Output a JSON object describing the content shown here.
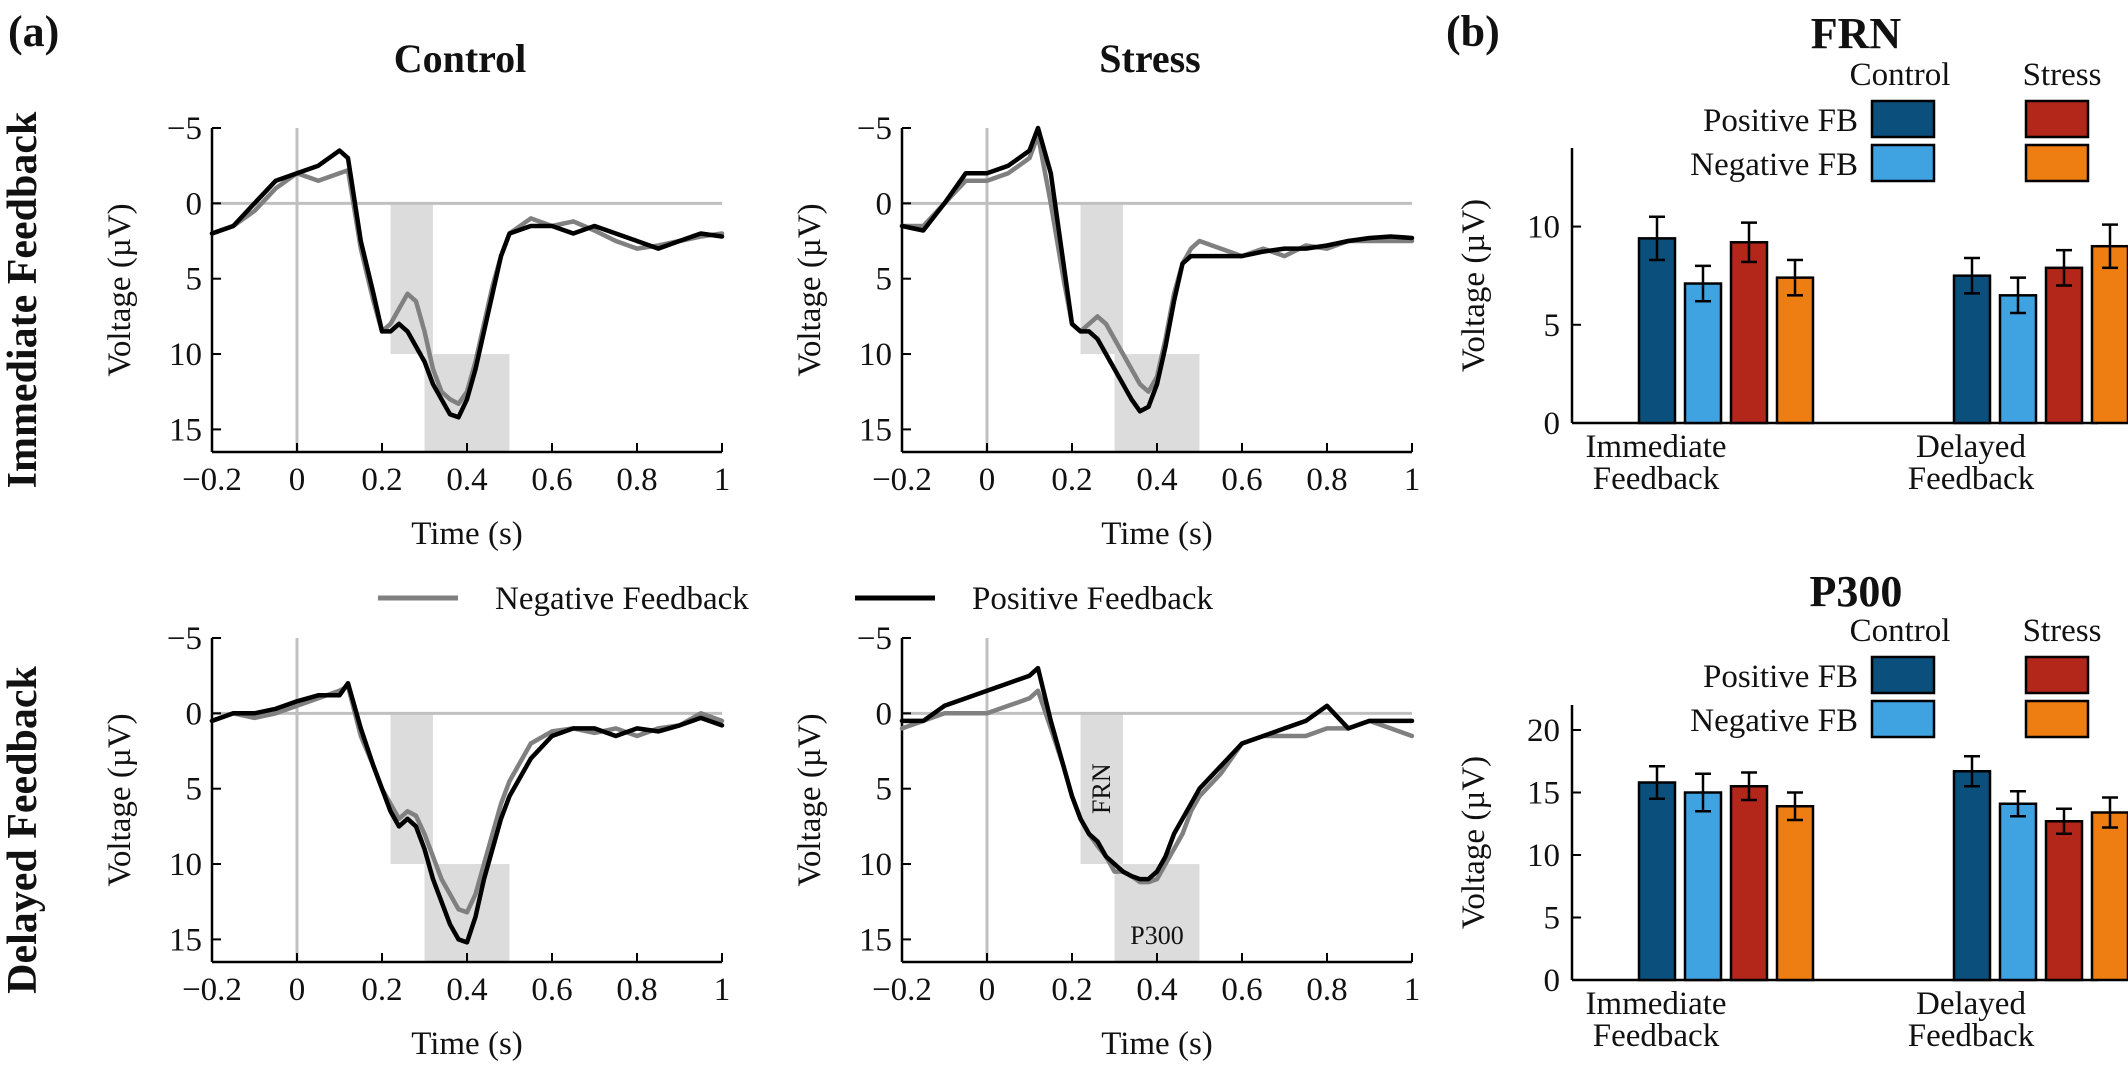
{
  "panel_a_label": "(a)",
  "panel_b_label": "(b)",
  "column_titles": [
    "Control",
    "Stress"
  ],
  "row_titles": [
    "Immediate Feedback",
    "Delayed Feedback"
  ],
  "erp_legend": {
    "negative": {
      "label": "Negative Feedback",
      "color": "#808080"
    },
    "positive": {
      "label": "Positive Feedback",
      "color": "#000000"
    }
  },
  "bar_legend": {
    "col_headers": [
      "Control",
      "Stress"
    ],
    "row_labels": [
      "Positive FB",
      "Negative FB"
    ]
  },
  "annotations": {
    "frn": "FRN",
    "p300": "P300"
  },
  "colors": {
    "control_positive": "#0b4f7c",
    "control_negative": "#3fa3e1",
    "stress_positive": "#b3261a",
    "stress_negative": "#ee7d12",
    "window_shade": "#dcdcdc",
    "zero_line": "#c0c0c0"
  },
  "chart_data": [
    {
      "type": "line",
      "panel": "a",
      "row": "Immediate Feedback",
      "column": "Control",
      "xlabel": "Time (s)",
      "ylabel": "Voltage (µV)",
      "y_inverted": true,
      "xlim": [
        -0.2,
        1.0
      ],
      "ylim": [
        -5,
        16.5
      ],
      "xticks": [
        "−0.2",
        "0",
        "0.2",
        "0.4",
        "0.6",
        "0.8",
        "1"
      ],
      "yticks": [
        "−5",
        "0",
        "5",
        "10",
        "15"
      ],
      "windows": [
        {
          "x": [
            0.22,
            0.32
          ],
          "y": [
            0,
            10
          ]
        },
        {
          "x": [
            0.3,
            0.5
          ],
          "y": [
            10,
            16.5
          ]
        }
      ],
      "series": [
        {
          "name": "Negative Feedback",
          "x": [
            -0.2,
            -0.15,
            -0.1,
            -0.05,
            0,
            0.05,
            0.1,
            0.12,
            0.15,
            0.18,
            0.2,
            0.22,
            0.24,
            0.26,
            0.28,
            0.3,
            0.32,
            0.34,
            0.36,
            0.38,
            0.4,
            0.42,
            0.44,
            0.46,
            0.48,
            0.5,
            0.55,
            0.6,
            0.65,
            0.7,
            0.75,
            0.8,
            0.85,
            0.9,
            0.95,
            1.0
          ],
          "y": [
            2,
            1.5,
            0.5,
            -1,
            -2,
            -1.5,
            -2,
            -2.2,
            3,
            6.5,
            8.5,
            8,
            7,
            6,
            6.5,
            8.5,
            11,
            12.5,
            13,
            13.3,
            12.5,
            10.5,
            8,
            5.5,
            3.5,
            2,
            1,
            1.5,
            1.2,
            1.8,
            2.5,
            3,
            2.8,
            2.5,
            2.2,
            2
          ]
        },
        {
          "name": "Positive Feedback",
          "x": [
            -0.2,
            -0.15,
            -0.1,
            -0.05,
            0,
            0.05,
            0.1,
            0.12,
            0.15,
            0.18,
            0.2,
            0.22,
            0.24,
            0.26,
            0.28,
            0.3,
            0.32,
            0.34,
            0.36,
            0.38,
            0.4,
            0.42,
            0.44,
            0.46,
            0.48,
            0.5,
            0.55,
            0.6,
            0.65,
            0.7,
            0.75,
            0.8,
            0.85,
            0.9,
            0.95,
            1.0
          ],
          "y": [
            2,
            1.5,
            0,
            -1.5,
            -2,
            -2.5,
            -3.5,
            -3,
            2.5,
            6,
            8.5,
            8.5,
            8,
            8.5,
            9.5,
            10.5,
            12,
            13,
            14,
            14.2,
            13,
            11,
            8.5,
            6,
            3.5,
            2,
            1.5,
            1.5,
            2,
            1.5,
            2,
            2.5,
            3,
            2.5,
            2,
            2.2
          ]
        }
      ]
    },
    {
      "type": "line",
      "panel": "a",
      "row": "Immediate Feedback",
      "column": "Stress",
      "xlabel": "Time (s)",
      "ylabel": "Voltage (µV)",
      "y_inverted": true,
      "xlim": [
        -0.2,
        1.0
      ],
      "ylim": [
        -5,
        16.5
      ],
      "xticks": [
        "−0.2",
        "0",
        "0.2",
        "0.4",
        "0.6",
        "0.8",
        "1"
      ],
      "yticks": [
        "−5",
        "0",
        "5",
        "10",
        "15"
      ],
      "windows": [
        {
          "x": [
            0.22,
            0.32
          ],
          "y": [
            0,
            10
          ]
        },
        {
          "x": [
            0.3,
            0.5
          ],
          "y": [
            10,
            16.5
          ]
        }
      ],
      "series": [
        {
          "name": "Negative Feedback",
          "x": [
            -0.2,
            -0.15,
            -0.1,
            -0.05,
            0,
            0.05,
            0.1,
            0.12,
            0.15,
            0.18,
            0.2,
            0.22,
            0.24,
            0.26,
            0.28,
            0.3,
            0.32,
            0.34,
            0.36,
            0.38,
            0.4,
            0.42,
            0.44,
            0.46,
            0.48,
            0.5,
            0.55,
            0.6,
            0.65,
            0.7,
            0.75,
            0.8,
            0.85,
            0.9,
            0.95,
            1.0
          ],
          "y": [
            1.5,
            1.5,
            0,
            -1.5,
            -1.5,
            -2,
            -3,
            -4.5,
            0,
            5,
            8,
            8.5,
            8,
            7.5,
            8,
            9,
            10,
            11,
            12,
            12.5,
            11.5,
            9,
            6,
            4,
            3,
            2.5,
            3,
            3.5,
            3,
            3.5,
            2.8,
            3,
            2.5,
            2.5,
            2.5,
            2.5
          ]
        },
        {
          "name": "Positive Feedback",
          "x": [
            -0.2,
            -0.15,
            -0.1,
            -0.05,
            0,
            0.05,
            0.1,
            0.12,
            0.15,
            0.18,
            0.2,
            0.22,
            0.24,
            0.26,
            0.28,
            0.3,
            0.32,
            0.34,
            0.36,
            0.38,
            0.4,
            0.42,
            0.44,
            0.46,
            0.48,
            0.5,
            0.55,
            0.6,
            0.65,
            0.7,
            0.75,
            0.8,
            0.85,
            0.9,
            0.95,
            1.0
          ],
          "y": [
            1.5,
            1.8,
            0,
            -2,
            -2,
            -2.5,
            -3.5,
            -5,
            -2,
            4,
            8,
            8.5,
            8.5,
            9,
            10,
            11,
            12,
            13,
            13.8,
            13.5,
            12,
            9.5,
            6.5,
            4,
            3.5,
            3.5,
            3.5,
            3.5,
            3.2,
            3,
            3,
            2.8,
            2.5,
            2.3,
            2.2,
            2.3
          ]
        }
      ]
    },
    {
      "type": "line",
      "panel": "a",
      "row": "Delayed Feedback",
      "column": "Control",
      "xlabel": "Time (s)",
      "ylabel": "Voltage (µV)",
      "y_inverted": true,
      "xlim": [
        -0.2,
        1.0
      ],
      "ylim": [
        -5,
        16.5
      ],
      "xticks": [
        "−0.2",
        "0",
        "0.2",
        "0.4",
        "0.6",
        "0.8",
        "1"
      ],
      "yticks": [
        "−5",
        "0",
        "5",
        "10",
        "15"
      ],
      "windows": [
        {
          "x": [
            0.22,
            0.32
          ],
          "y": [
            0,
            10
          ]
        },
        {
          "x": [
            0.3,
            0.5
          ],
          "y": [
            10,
            16.5
          ]
        }
      ],
      "series": [
        {
          "name": "Negative Feedback",
          "x": [
            -0.2,
            -0.15,
            -0.1,
            -0.05,
            0,
            0.05,
            0.1,
            0.12,
            0.15,
            0.18,
            0.2,
            0.22,
            0.24,
            0.26,
            0.28,
            0.3,
            0.32,
            0.34,
            0.36,
            0.38,
            0.4,
            0.42,
            0.44,
            0.46,
            0.48,
            0.5,
            0.55,
            0.6,
            0.65,
            0.7,
            0.75,
            0.8,
            0.85,
            0.9,
            0.95,
            1.0
          ],
          "y": [
            0.5,
            0,
            0.3,
            0,
            -0.5,
            -1,
            -1.5,
            -1.8,
            1.5,
            3.5,
            5,
            6,
            7,
            6.5,
            6.8,
            8,
            9.5,
            11,
            12,
            13,
            13.2,
            12,
            10,
            8,
            6,
            4.5,
            2,
            1.2,
            1,
            1.3,
            1,
            1.5,
            1,
            0.8,
            0,
            0.5
          ]
        },
        {
          "name": "Positive Feedback",
          "x": [
            -0.2,
            -0.15,
            -0.1,
            -0.05,
            0,
            0.05,
            0.1,
            0.12,
            0.15,
            0.18,
            0.2,
            0.22,
            0.24,
            0.26,
            0.28,
            0.3,
            0.32,
            0.34,
            0.36,
            0.38,
            0.4,
            0.42,
            0.44,
            0.46,
            0.48,
            0.5,
            0.55,
            0.6,
            0.65,
            0.7,
            0.75,
            0.8,
            0.85,
            0.9,
            0.95,
            1.0
          ],
          "y": [
            0.5,
            0,
            0,
            -0.3,
            -0.8,
            -1.2,
            -1.2,
            -2,
            1,
            3.5,
            5,
            6.5,
            7.5,
            7,
            7.5,
            9,
            11,
            12.5,
            14,
            15,
            15.2,
            13.5,
            11,
            9,
            7,
            5.5,
            3,
            1.5,
            1,
            1,
            1.5,
            1,
            1.2,
            0.8,
            0.3,
            0.8
          ]
        }
      ]
    },
    {
      "type": "line",
      "panel": "a",
      "row": "Delayed Feedback",
      "column": "Stress",
      "xlabel": "Time (s)",
      "ylabel": "Voltage (µV)",
      "y_inverted": true,
      "xlim": [
        -0.2,
        1.0
      ],
      "ylim": [
        -5,
        16.5
      ],
      "xticks": [
        "−0.2",
        "0",
        "0.2",
        "0.4",
        "0.6",
        "0.8",
        "1"
      ],
      "yticks": [
        "−5",
        "0",
        "5",
        "10",
        "15"
      ],
      "windows": [
        {
          "x": [
            0.22,
            0.32
          ],
          "y": [
            0,
            10
          ]
        },
        {
          "x": [
            0.3,
            0.5
          ],
          "y": [
            10,
            16.5
          ]
        }
      ],
      "series": [
        {
          "name": "Negative Feedback",
          "x": [
            -0.2,
            -0.15,
            -0.1,
            -0.05,
            0,
            0.05,
            0.1,
            0.12,
            0.15,
            0.18,
            0.2,
            0.22,
            0.24,
            0.26,
            0.28,
            0.3,
            0.32,
            0.34,
            0.36,
            0.38,
            0.4,
            0.42,
            0.44,
            0.46,
            0.48,
            0.5,
            0.55,
            0.6,
            0.65,
            0.7,
            0.75,
            0.8,
            0.85,
            0.9,
            0.95,
            1.0
          ],
          "y": [
            1,
            0.5,
            0,
            0,
            0,
            -0.5,
            -1,
            -1.5,
            1,
            3.5,
            5.5,
            7,
            8,
            8.8,
            9.5,
            10.5,
            10.5,
            10.8,
            11.2,
            11.2,
            11,
            10,
            9,
            8,
            6.5,
            5.5,
            4,
            2,
            1.5,
            1.5,
            1.5,
            1,
            1,
            0.5,
            1,
            1.5
          ]
        },
        {
          "name": "Positive Feedback",
          "x": [
            -0.2,
            -0.15,
            -0.1,
            -0.05,
            0,
            0.05,
            0.1,
            0.12,
            0.15,
            0.18,
            0.2,
            0.22,
            0.24,
            0.26,
            0.28,
            0.3,
            0.32,
            0.34,
            0.36,
            0.38,
            0.4,
            0.42,
            0.44,
            0.46,
            0.48,
            0.5,
            0.55,
            0.6,
            0.65,
            0.7,
            0.75,
            0.8,
            0.85,
            0.9,
            0.95,
            1.0
          ],
          "y": [
            0.5,
            0.5,
            -0.5,
            -1,
            -1.5,
            -2,
            -2.5,
            -3,
            0.5,
            3.5,
            5.5,
            7,
            8,
            8.5,
            9.5,
            10,
            10.5,
            10.8,
            11,
            11,
            10.5,
            9.5,
            8,
            7,
            6,
            5,
            3.5,
            2,
            1.5,
            1,
            0.5,
            -0.5,
            1,
            0.5,
            0.5,
            0.5
          ]
        }
      ]
    },
    {
      "type": "bar",
      "panel": "b",
      "title": "FRN",
      "ylabel": "Voltage (µV)",
      "categories": [
        "Immediate\nFeedback",
        "Delayed\nFeedback"
      ],
      "ylim": [
        0,
        14
      ],
      "yticks": [
        0,
        5,
        10
      ],
      "series": [
        {
          "group": "Control",
          "feedback": "Positive FB",
          "values": [
            9.4,
            7.5
          ],
          "errors": [
            1.1,
            0.9
          ]
        },
        {
          "group": "Control",
          "feedback": "Negative FB",
          "values": [
            7.1,
            6.5
          ],
          "errors": [
            0.9,
            0.9
          ]
        },
        {
          "group": "Stress",
          "feedback": "Positive FB",
          "values": [
            9.2,
            7.9
          ],
          "errors": [
            1.0,
            0.9
          ]
        },
        {
          "group": "Stress",
          "feedback": "Negative FB",
          "values": [
            7.4,
            9.0
          ],
          "errors": [
            0.9,
            1.1
          ]
        }
      ]
    },
    {
      "type": "bar",
      "panel": "b",
      "title": "P300",
      "ylabel": "Voltage (µV)",
      "categories": [
        "Immediate\nFeedback",
        "Delayed\nFeedback"
      ],
      "ylim": [
        0,
        22
      ],
      "yticks": [
        0,
        5,
        10,
        15,
        20
      ],
      "series": [
        {
          "group": "Control",
          "feedback": "Positive FB",
          "values": [
            15.8,
            16.7
          ],
          "errors": [
            1.3,
            1.2
          ]
        },
        {
          "group": "Control",
          "feedback": "Negative FB",
          "values": [
            15.0,
            14.1
          ],
          "errors": [
            1.5,
            1.0
          ]
        },
        {
          "group": "Stress",
          "feedback": "Positive FB",
          "values": [
            15.5,
            12.7
          ],
          "errors": [
            1.1,
            1.0
          ]
        },
        {
          "group": "Stress",
          "feedback": "Negative FB",
          "values": [
            13.9,
            13.4
          ],
          "errors": [
            1.1,
            1.2
          ]
        }
      ]
    }
  ]
}
